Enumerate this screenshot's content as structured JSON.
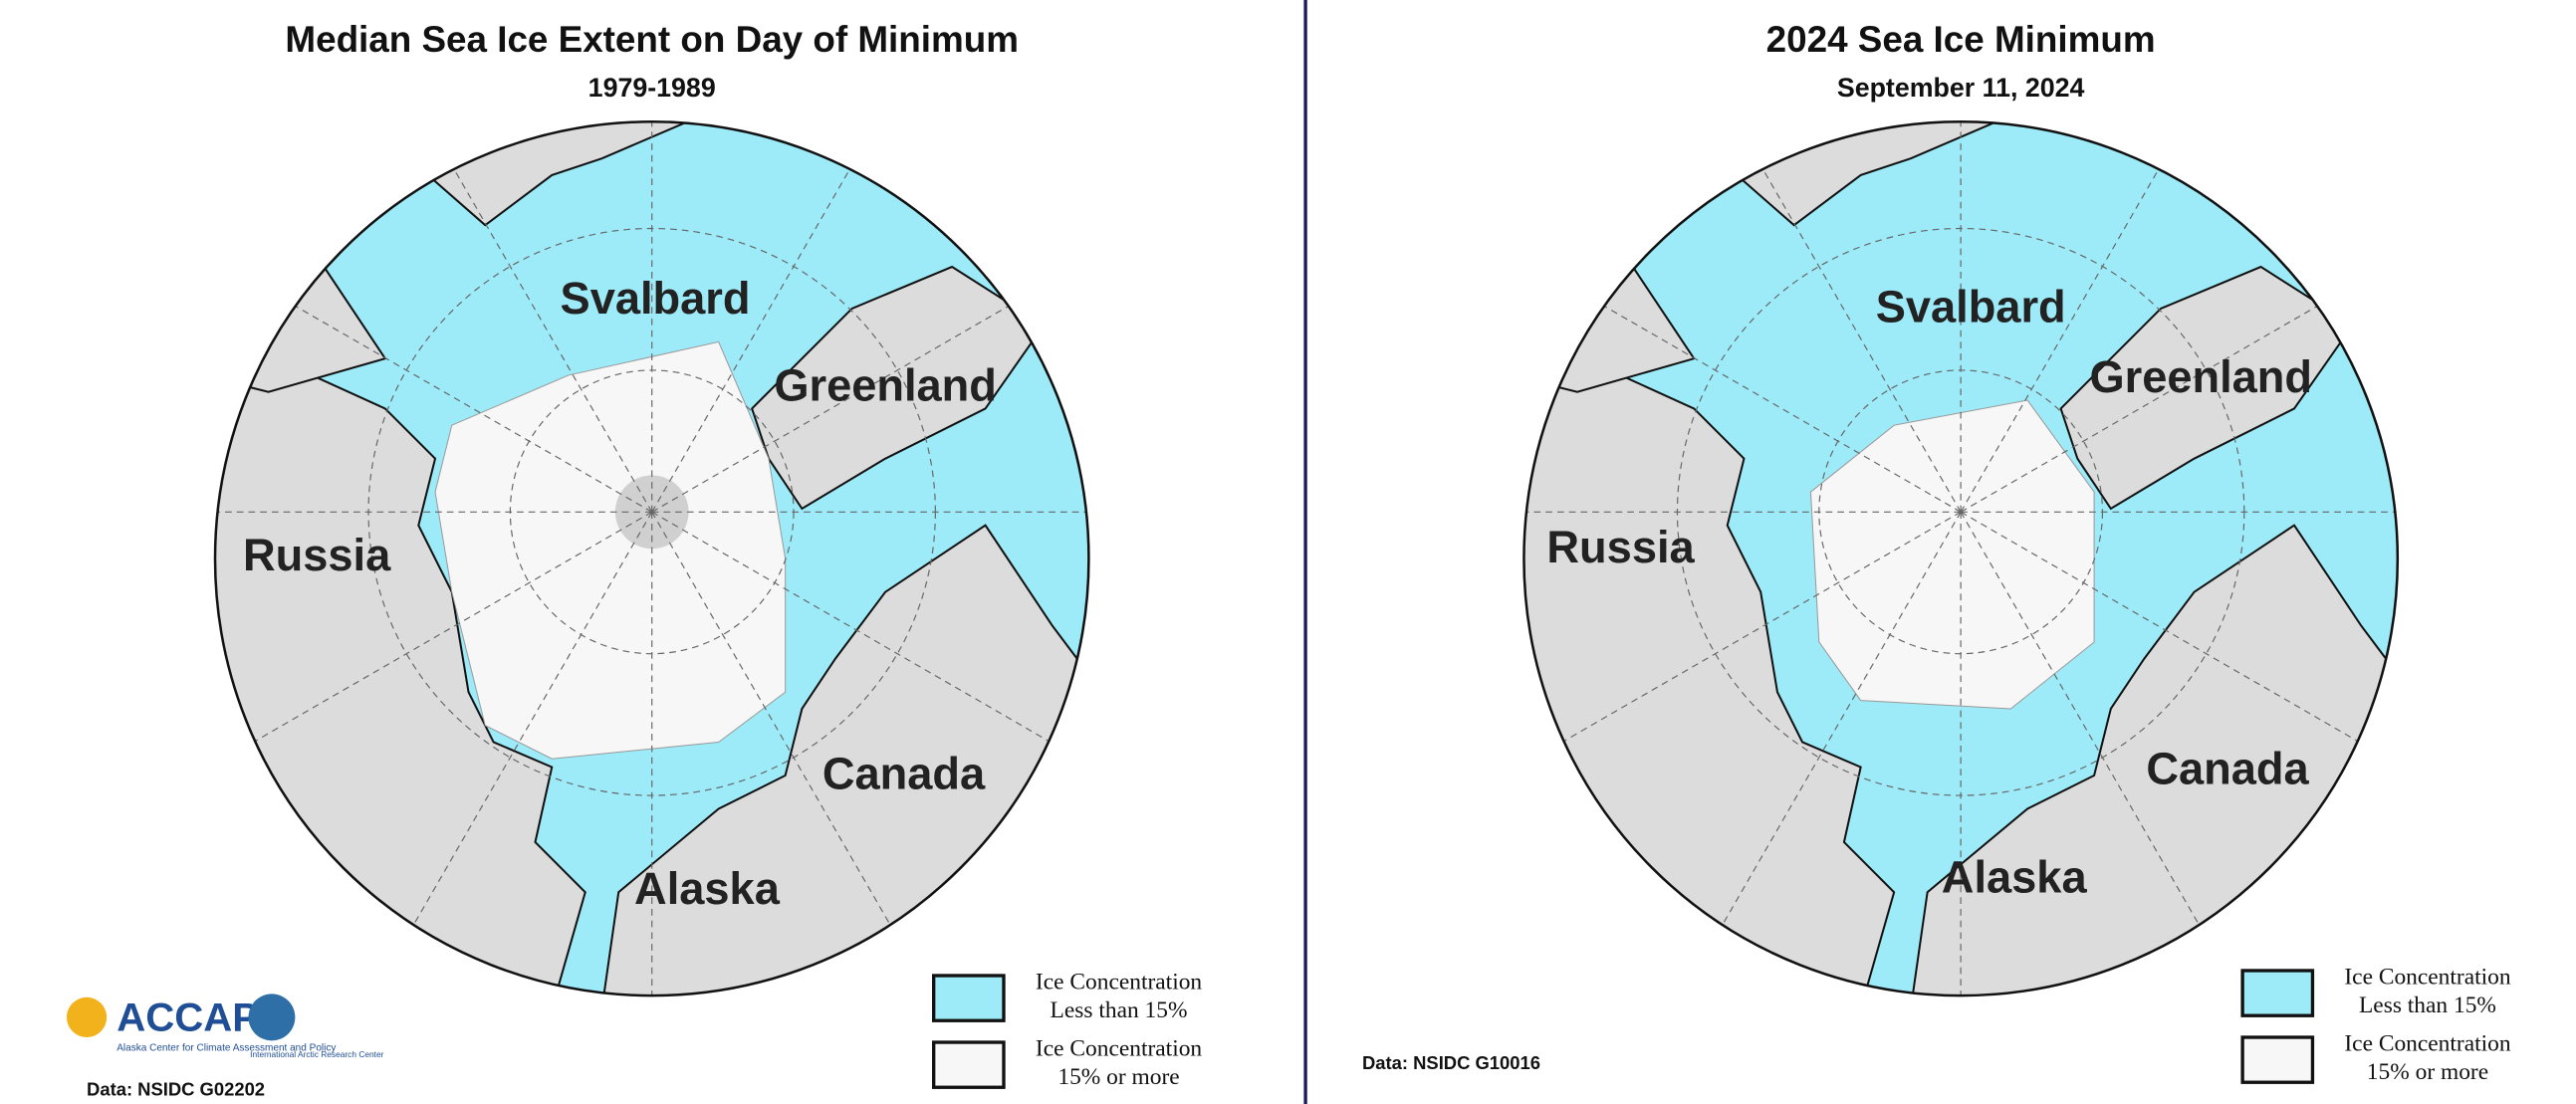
{
  "panels": [
    {
      "title": "Median Sea Ice Extent on Day of Minimum",
      "subtitle": "1979-1989",
      "labels": [
        "Svalbard",
        "Greenland",
        "Russia",
        "Canada",
        "Alaska"
      ],
      "legend": [
        {
          "lines": [
            "Ice Concentration",
            "Less than 15%"
          ]
        },
        {
          "lines": [
            "Ice Concentration",
            "15% or more"
          ]
        }
      ],
      "source": "Data: NSIDC G02202"
    },
    {
      "title": "2024 Sea Ice Minimum",
      "subtitle": "September 11, 2024",
      "labels": [
        "Svalbard",
        "Greenland",
        "Russia",
        "Canada",
        "Alaska"
      ],
      "legend": [
        {
          "lines": [
            "Ice Concentration",
            "Less than 15%"
          ]
        },
        {
          "lines": [
            "Ice Concentration",
            "15% or more"
          ]
        }
      ],
      "source": "Data: NSIDC G10016"
    }
  ],
  "logo": {
    "name": "ACCAP",
    "tagline": "Alaska Center for Climate Assessment and Policy",
    "partner": "International Arctic Research Center"
  }
}
